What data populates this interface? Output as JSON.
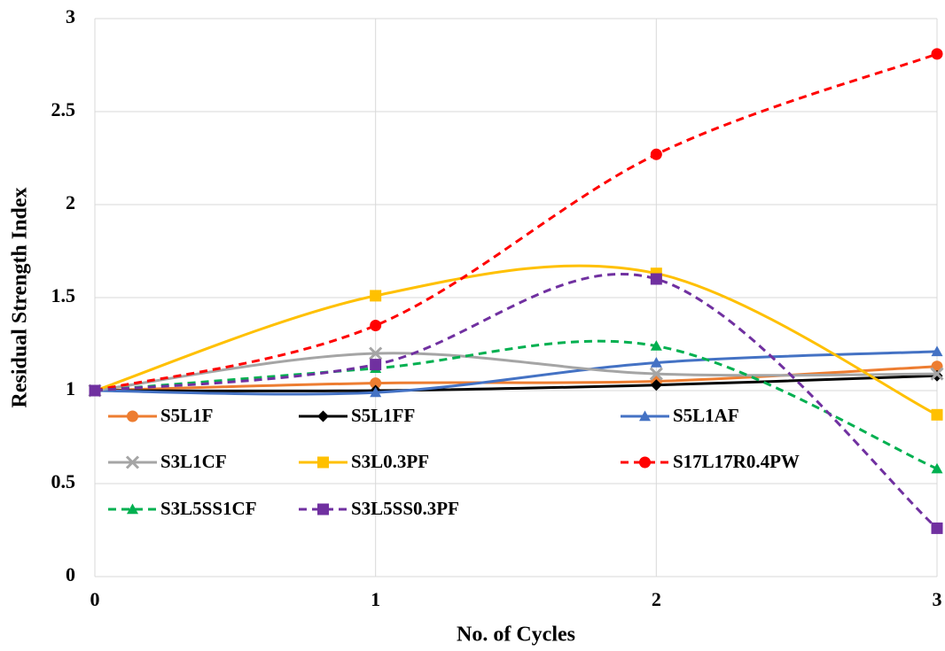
{
  "chart_data": {
    "type": "line",
    "x_label": "No. of Cycles",
    "y_label": "Residual Strength Index",
    "x": [
      0,
      1,
      2,
      3
    ],
    "xlim": [
      0,
      3
    ],
    "xticks": [
      0,
      1,
      2,
      3
    ],
    "ylim": [
      0,
      3
    ],
    "yticks": [
      0,
      0.5,
      1,
      1.5,
      2,
      2.5,
      3
    ],
    "grid": true,
    "smooth": true,
    "legend": "lower left",
    "series": [
      {
        "name": "S5L1F",
        "color": "#ED7D31",
        "marker": "circle",
        "dashed": false,
        "values": [
          1,
          1.04,
          1.05,
          1.13
        ]
      },
      {
        "name": "S5L1FF",
        "color": "#000000",
        "marker": "diamond",
        "dashed": false,
        "values": [
          1,
          1.0,
          1.03,
          1.08
        ]
      },
      {
        "name": "S5L1AF",
        "color": "#4472C4",
        "marker": "triangle",
        "dashed": false,
        "values": [
          1,
          0.99,
          1.15,
          1.21
        ]
      },
      {
        "name": "S3L1CF",
        "color": "#A5A5A5",
        "marker": "x",
        "dashed": false,
        "values": [
          1,
          1.2,
          1.09,
          1.09
        ]
      },
      {
        "name": "S3L0.3PF",
        "color": "#FFC000",
        "marker": "square",
        "dashed": false,
        "values": [
          1,
          1.51,
          1.63,
          0.87
        ]
      },
      {
        "name": "S17L17R0.4PW",
        "color": "#FF0000",
        "marker": "circle",
        "dashed": true,
        "values": [
          1,
          1.35,
          2.27,
          2.81
        ]
      },
      {
        "name": "S3L5SS1CF",
        "color": "#00B050",
        "marker": "triangle",
        "dashed": true,
        "values": [
          1,
          1.12,
          1.24,
          0.58
        ]
      },
      {
        "name": "S3L5SS0.3PF",
        "color": "#7030A0",
        "marker": "square",
        "dashed": true,
        "values": [
          1,
          1.14,
          1.6,
          0.26
        ]
      }
    ]
  }
}
